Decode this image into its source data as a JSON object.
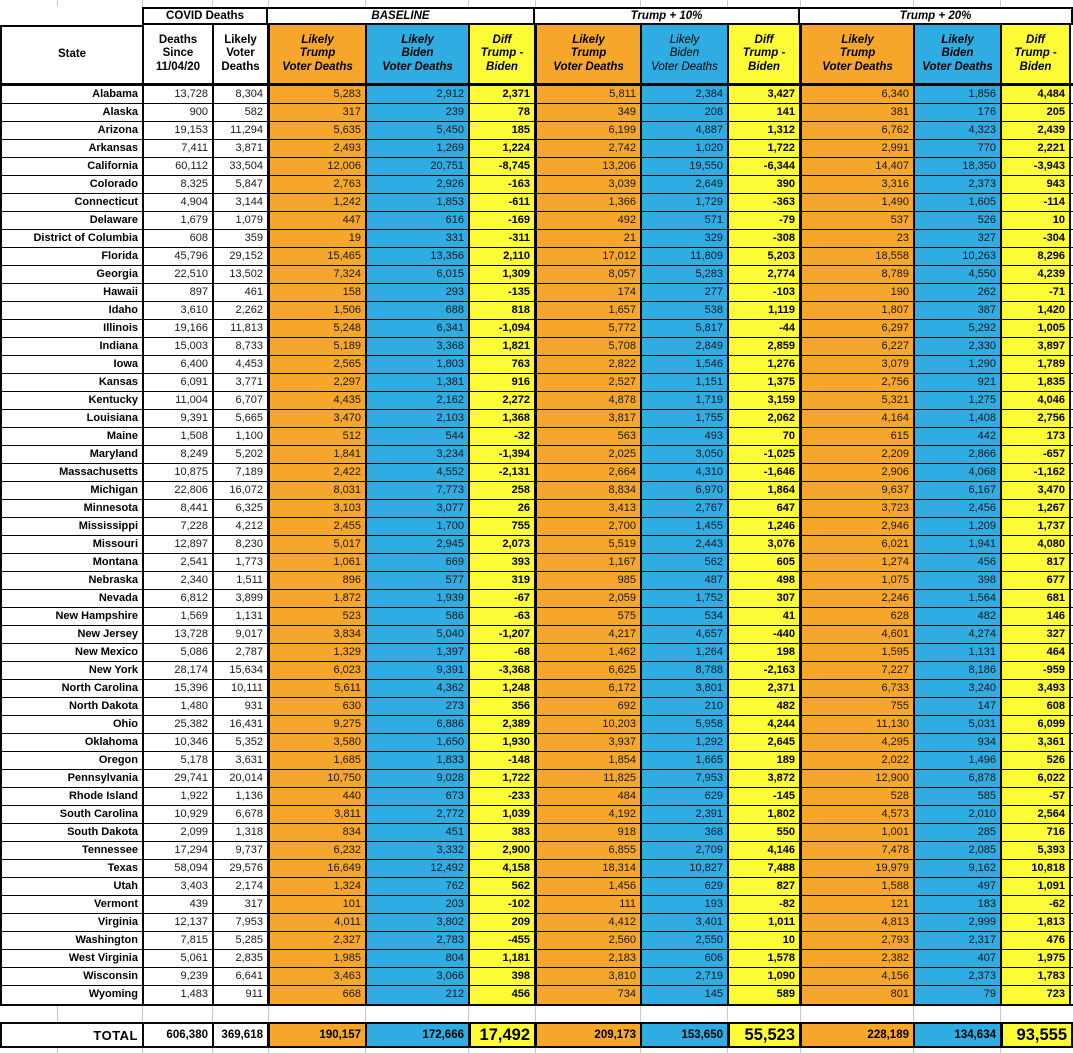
{
  "colors": {
    "trump_orange": "#F6A72B",
    "biden_blue": "#2FACE2",
    "diff_yellow": "#FDFB35"
  },
  "header": {
    "groups": {
      "covid": "COVID Deaths",
      "baseline": "BASELINE",
      "t10": "Trump + 10%",
      "t20": "Trump + 20%"
    },
    "cols": {
      "state": "State",
      "deaths_since": "Deaths\nSince\n11/04/20",
      "likely_voter": "Likely\nVoter\nDeaths",
      "trump": "Likely\nTrump\nVoter Deaths",
      "biden": "Likely\nBiden\nVoter Deaths",
      "diff": "Diff\nTrump -\nBiden"
    }
  },
  "table": {
    "rows": [
      [
        "Alabama",
        "13,728",
        "8,304",
        "5,283",
        "2,912",
        "2,371",
        "5,811",
        "2,384",
        "3,427",
        "6,340",
        "1,856",
        "4,484"
      ],
      [
        "Alaska",
        "900",
        "582",
        "317",
        "239",
        "78",
        "349",
        "208",
        "141",
        "381",
        "176",
        "205"
      ],
      [
        "Arizona",
        "19,153",
        "11,294",
        "5,635",
        "5,450",
        "185",
        "6,199",
        "4,887",
        "1,312",
        "6,762",
        "4,323",
        "2,439"
      ],
      [
        "Arkansas",
        "7,411",
        "3,871",
        "2,493",
        "1,269",
        "1,224",
        "2,742",
        "1,020",
        "1,722",
        "2,991",
        "770",
        "2,221"
      ],
      [
        "California",
        "60,112",
        "33,504",
        "12,006",
        "20,751",
        "-8,745",
        "13,206",
        "19,550",
        "-6,344",
        "14,407",
        "18,350",
        "-3,943"
      ],
      [
        "Colorado",
        "8,325",
        "5,847",
        "2,763",
        "2,926",
        "-163",
        "3,039",
        "2,649",
        "390",
        "3,316",
        "2,373",
        "943"
      ],
      [
        "Connecticut",
        "4,904",
        "3,144",
        "1,242",
        "1,853",
        "-611",
        "1,366",
        "1,729",
        "-363",
        "1,490",
        "1,605",
        "-114"
      ],
      [
        "Delaware",
        "1,679",
        "1,079",
        "447",
        "616",
        "-169",
        "492",
        "571",
        "-79",
        "537",
        "526",
        "10"
      ],
      [
        "District of Columbia",
        "608",
        "359",
        "19",
        "331",
        "-311",
        "21",
        "329",
        "-308",
        "23",
        "327",
        "-304"
      ],
      [
        "Florida",
        "45,796",
        "29,152",
        "15,465",
        "13,356",
        "2,110",
        "17,012",
        "11,809",
        "5,203",
        "18,558",
        "10,263",
        "8,296"
      ],
      [
        "Georgia",
        "22,510",
        "13,502",
        "7,324",
        "6,015",
        "1,309",
        "8,057",
        "5,283",
        "2,774",
        "8,789",
        "4,550",
        "4,239"
      ],
      [
        "Hawaii",
        "897",
        "461",
        "158",
        "293",
        "-135",
        "174",
        "277",
        "-103",
        "190",
        "262",
        "-71"
      ],
      [
        "Idaho",
        "3,610",
        "2,262",
        "1,506",
        "688",
        "818",
        "1,657",
        "538",
        "1,119",
        "1,807",
        "387",
        "1,420"
      ],
      [
        "Illinois",
        "19,166",
        "11,813",
        "5,248",
        "6,341",
        "-1,094",
        "5,772",
        "5,817",
        "-44",
        "6,297",
        "5,292",
        "1,005"
      ],
      [
        "Indiana",
        "15,003",
        "8,733",
        "5,189",
        "3,368",
        "1,821",
        "5,708",
        "2,849",
        "2,859",
        "6,227",
        "2,330",
        "3,897"
      ],
      [
        "Iowa",
        "6,400",
        "4,453",
        "2,565",
        "1,803",
        "763",
        "2,822",
        "1,546",
        "1,276",
        "3,079",
        "1,290",
        "1,789"
      ],
      [
        "Kansas",
        "6,091",
        "3,771",
        "2,297",
        "1,381",
        "916",
        "2,527",
        "1,151",
        "1,375",
        "2,756",
        "921",
        "1,835"
      ],
      [
        "Kentucky",
        "11,004",
        "6,707",
        "4,435",
        "2,162",
        "2,272",
        "4,878",
        "1,719",
        "3,159",
        "5,321",
        "1,275",
        "4,046"
      ],
      [
        "Louisiana",
        "9,391",
        "5,665",
        "3,470",
        "2,103",
        "1,368",
        "3,817",
        "1,755",
        "2,062",
        "4,164",
        "1,408",
        "2,756"
      ],
      [
        "Maine",
        "1,508",
        "1,100",
        "512",
        "544",
        "-32",
        "563",
        "493",
        "70",
        "615",
        "442",
        "173"
      ],
      [
        "Maryland",
        "8,249",
        "5,202",
        "1,841",
        "3,234",
        "-1,394",
        "2,025",
        "3,050",
        "-1,025",
        "2,209",
        "2,866",
        "-657"
      ],
      [
        "Massachusetts",
        "10,875",
        "7,189",
        "2,422",
        "4,552",
        "-2,131",
        "2,664",
        "4,310",
        "-1,646",
        "2,906",
        "4,068",
        "-1,162"
      ],
      [
        "Michigan",
        "22,806",
        "16,072",
        "8,031",
        "7,773",
        "258",
        "8,834",
        "6,970",
        "1,864",
        "9,637",
        "6,167",
        "3,470"
      ],
      [
        "Minnesota",
        "8,441",
        "6,325",
        "3,103",
        "3,077",
        "26",
        "3,413",
        "2,767",
        "647",
        "3,723",
        "2,456",
        "1,267"
      ],
      [
        "Mississippi",
        "7,228",
        "4,212",
        "2,455",
        "1,700",
        "755",
        "2,700",
        "1,455",
        "1,246",
        "2,946",
        "1,209",
        "1,737"
      ],
      [
        "Missouri",
        "12,897",
        "8,230",
        "5,017",
        "2,945",
        "2,073",
        "5,519",
        "2,443",
        "3,076",
        "6,021",
        "1,941",
        "4,080"
      ],
      [
        "Montana",
        "2,541",
        "1,773",
        "1,061",
        "669",
        "393",
        "1,167",
        "562",
        "605",
        "1,274",
        "456",
        "817"
      ],
      [
        "Nebraska",
        "2,340",
        "1,511",
        "896",
        "577",
        "319",
        "985",
        "487",
        "498",
        "1,075",
        "398",
        "677"
      ],
      [
        "Nevada",
        "6,812",
        "3,899",
        "1,872",
        "1,939",
        "-67",
        "2,059",
        "1,752",
        "307",
        "2,246",
        "1,564",
        "681"
      ],
      [
        "New Hampshire",
        "1,569",
        "1,131",
        "523",
        "586",
        "-63",
        "575",
        "534",
        "41",
        "628",
        "482",
        "146"
      ],
      [
        "New Jersey",
        "13,728",
        "9,017",
        "3,834",
        "5,040",
        "-1,207",
        "4,217",
        "4,657",
        "-440",
        "4,601",
        "4,274",
        "327"
      ],
      [
        "New Mexico",
        "5,086",
        "2,787",
        "1,329",
        "1,397",
        "-68",
        "1,462",
        "1,264",
        "198",
        "1,595",
        "1,131",
        "464"
      ],
      [
        "New York",
        "28,174",
        "15,634",
        "6,023",
        "9,391",
        "-3,368",
        "6,625",
        "8,788",
        "-2,163",
        "7,227",
        "8,186",
        "-959"
      ],
      [
        "North Carolina",
        "15,396",
        "10,111",
        "5,611",
        "4,362",
        "1,248",
        "6,172",
        "3,801",
        "2,371",
        "6,733",
        "3,240",
        "3,493"
      ],
      [
        "North Dakota",
        "1,480",
        "931",
        "630",
        "273",
        "356",
        "692",
        "210",
        "482",
        "755",
        "147",
        "608"
      ],
      [
        "Ohio",
        "25,382",
        "16,431",
        "9,275",
        "6,886",
        "2,389",
        "10,203",
        "5,958",
        "4,244",
        "11,130",
        "5,031",
        "6,099"
      ],
      [
        "Oklahoma",
        "10,346",
        "5,352",
        "3,580",
        "1,650",
        "1,930",
        "3,937",
        "1,292",
        "2,645",
        "4,295",
        "934",
        "3,361"
      ],
      [
        "Oregon",
        "5,178",
        "3,631",
        "1,685",
        "1,833",
        "-148",
        "1,854",
        "1,665",
        "189",
        "2,022",
        "1,496",
        "526"
      ],
      [
        "Pennsylvania",
        "29,741",
        "20,014",
        "10,750",
        "9,028",
        "1,722",
        "11,825",
        "7,953",
        "3,872",
        "12,900",
        "6,878",
        "6,022"
      ],
      [
        "Rhode Island",
        "1,922",
        "1,136",
        "440",
        "673",
        "-233",
        "484",
        "629",
        "-145",
        "528",
        "585",
        "-57"
      ],
      [
        "South Carolina",
        "10,929",
        "6,678",
        "3,811",
        "2,772",
        "1,039",
        "4,192",
        "2,391",
        "1,802",
        "4,573",
        "2,010",
        "2,564"
      ],
      [
        "South Dakota",
        "2,099",
        "1,318",
        "834",
        "451",
        "383",
        "918",
        "368",
        "550",
        "1,001",
        "285",
        "716"
      ],
      [
        "Tennessee",
        "17,294",
        "9,737",
        "6,232",
        "3,332",
        "2,900",
        "6,855",
        "2,709",
        "4,146",
        "7,478",
        "2,085",
        "5,393"
      ],
      [
        "Texas",
        "58,094",
        "29,576",
        "16,649",
        "12,492",
        "4,158",
        "18,314",
        "10,827",
        "7,488",
        "19,979",
        "9,162",
        "10,818"
      ],
      [
        "Utah",
        "3,403",
        "2,174",
        "1,324",
        "762",
        "562",
        "1,456",
        "629",
        "827",
        "1,588",
        "497",
        "1,091"
      ],
      [
        "Vermont",
        "439",
        "317",
        "101",
        "203",
        "-102",
        "111",
        "193",
        "-82",
        "121",
        "183",
        "-62"
      ],
      [
        "Virginia",
        "12,137",
        "7,953",
        "4,011",
        "3,802",
        "209",
        "4,412",
        "3,401",
        "1,011",
        "4,813",
        "2,999",
        "1,813"
      ],
      [
        "Washington",
        "7,815",
        "5,285",
        "2,327",
        "2,783",
        "-455",
        "2,560",
        "2,550",
        "10",
        "2,793",
        "2,317",
        "476"
      ],
      [
        "West Virginia",
        "5,061",
        "2,835",
        "1,985",
        "804",
        "1,181",
        "2,183",
        "606",
        "1,578",
        "2,382",
        "407",
        "1,975"
      ],
      [
        "Wisconsin",
        "9,239",
        "6,641",
        "3,463",
        "3,066",
        "398",
        "3,810",
        "2,719",
        "1,090",
        "4,156",
        "2,373",
        "1,783"
      ],
      [
        "Wyoming",
        "1,483",
        "911",
        "668",
        "212",
        "456",
        "734",
        "145",
        "589",
        "801",
        "79",
        "723"
      ]
    ],
    "total": {
      "label": "TOTAL",
      "values": [
        "606,380",
        "369,618",
        "190,157",
        "172,666",
        "17,492",
        "209,173",
        "153,650",
        "55,523",
        "228,189",
        "134,634",
        "93,555"
      ]
    }
  }
}
